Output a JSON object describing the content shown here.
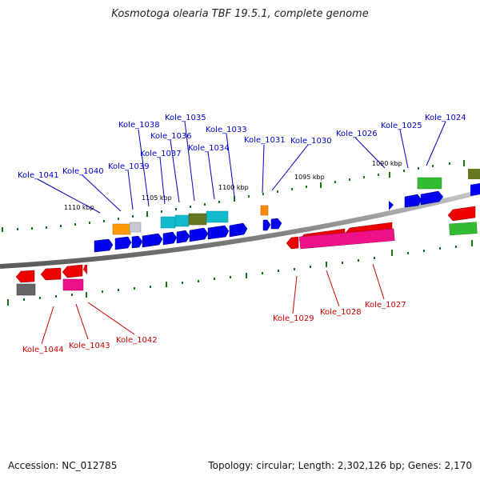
{
  "header": {
    "title": "Kosmotoga olearia TBF 19.5.1, complete genome"
  },
  "footer": {
    "accession": "Accession: NC_012785",
    "summary": "Topology: circular; Length: 2,302,126 bp; Genes: 2,170"
  },
  "scale_labels": [
    "1110 kbp",
    "1105 kbp",
    "1100 kbp",
    "1095 kbp",
    "1090 kbp"
  ],
  "gene_labels_top": [
    "Kole_1041",
    "Kole_1040",
    "Kole_1039",
    "Kole_1038",
    "Kole_1037",
    "Kole_1036",
    "Kole_1035",
    "Kole_1034",
    "Kole_1033",
    "Kole_1031",
    "Kole_1030",
    "Kole_1026",
    "Kole_1025",
    "Kole_1024"
  ],
  "gene_labels_bottom": [
    "Kole_1044",
    "Kole_1043",
    "Kole_1042",
    "Kole_1029",
    "Kole_1028",
    "Kole_1027"
  ],
  "colors": {
    "forward_label": "#0000cc",
    "reverse_label": "#cc0000",
    "backbone": "#808080",
    "tick": "#117711"
  }
}
